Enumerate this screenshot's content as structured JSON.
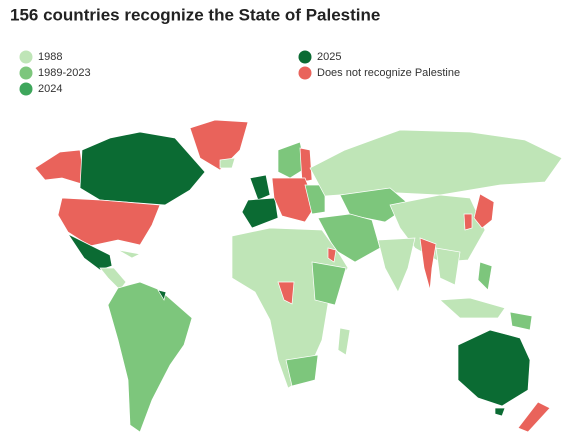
{
  "title": "156 countries recognize the State of Palestine",
  "legend": [
    {
      "label": "1988",
      "color": "#bfe5b7"
    },
    {
      "label": "1989-2023",
      "color": "#7dc67c"
    },
    {
      "label": "2024",
      "color": "#3ea65b"
    },
    {
      "label": "2025",
      "color": "#0b6b33"
    },
    {
      "label": "Does not recognize Palestine",
      "color": "#e9635b"
    }
  ]
}
